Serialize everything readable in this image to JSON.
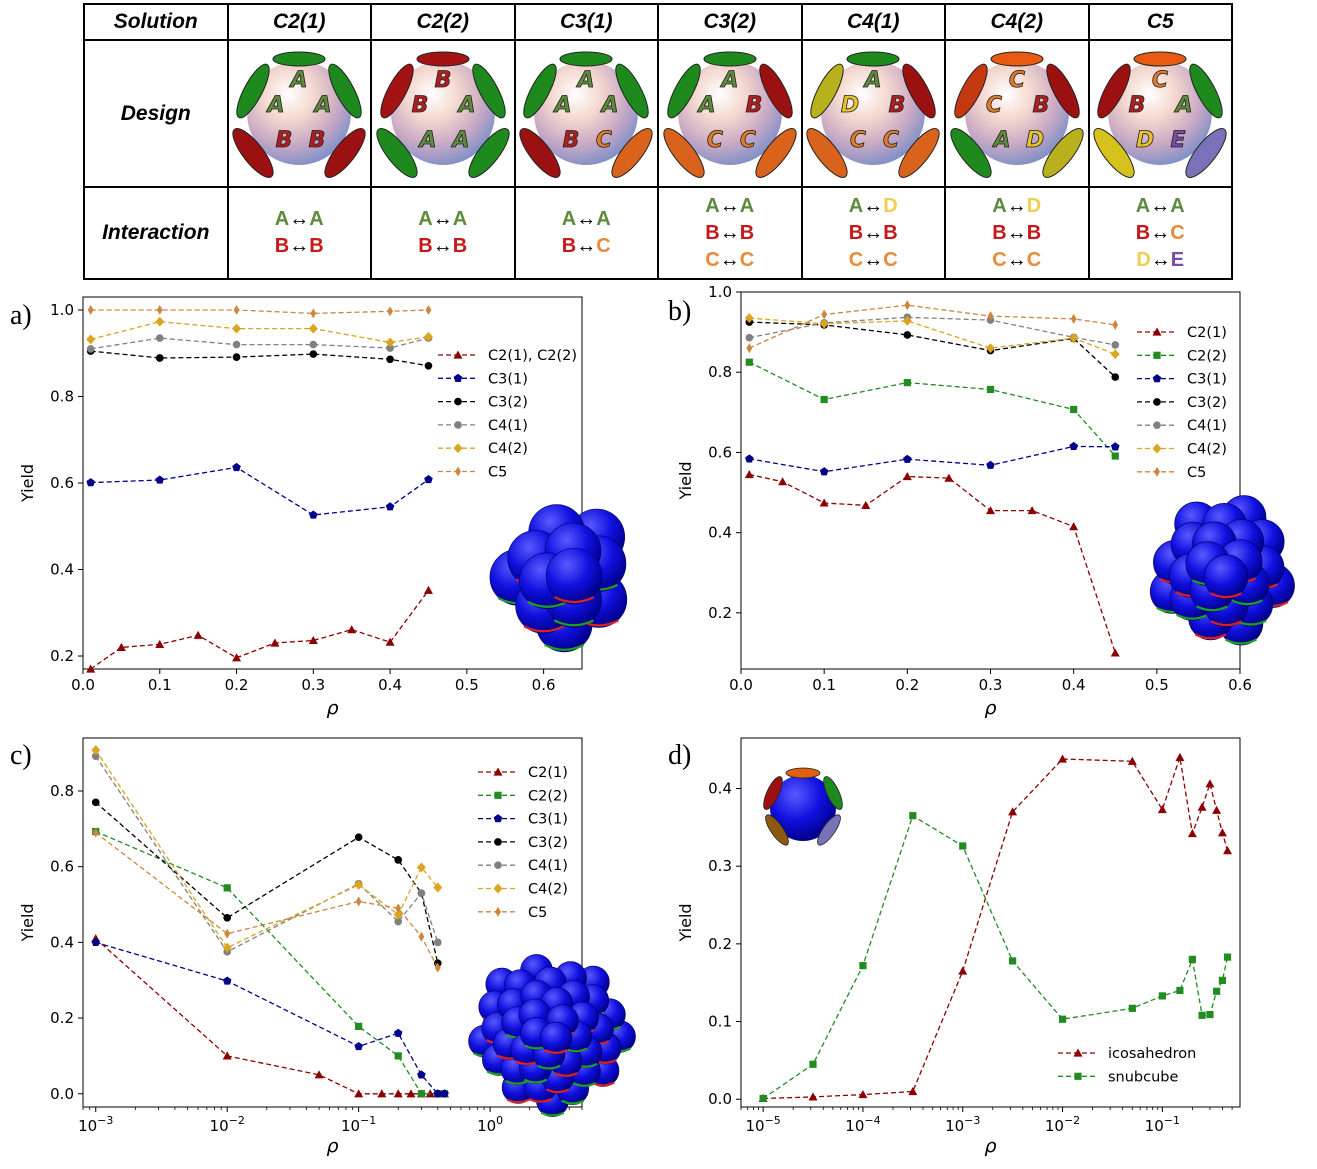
{
  "table": {
    "header_label": "Solution",
    "design_label": "Design",
    "interaction_label": "Interaction",
    "columns": [
      {
        "name": "C2(1)",
        "letters": [
          [
            "A",
            "#5e8a3c"
          ],
          [
            "A",
            "#5e8a3c"
          ],
          [
            "A",
            "#5e8a3c"
          ],
          [
            "B",
            "#b21e1e"
          ],
          [
            "B",
            "#b21e1e"
          ]
        ],
        "patches": [
          "#1e8a1e",
          "#1e8a1e",
          "#1e8a1e",
          "#9b1111",
          "#9b1111"
        ],
        "interactions": [
          [
            [
              "A",
              "#5e8a3c"
            ],
            [
              "A",
              "#5e8a3c"
            ]
          ],
          [
            [
              "B",
              "#c41a1a"
            ],
            [
              "B",
              "#c41a1a"
            ]
          ]
        ]
      },
      {
        "name": "C2(2)",
        "letters": [
          [
            "B",
            "#b21e1e"
          ],
          [
            "B",
            "#b21e1e"
          ],
          [
            "A",
            "#5e8a3c"
          ],
          [
            "A",
            "#5e8a3c"
          ],
          [
            "A",
            "#5e8a3c"
          ]
        ],
        "patches": [
          "#a31313",
          "#a31313",
          "#1e8a1e",
          "#1e8a1e",
          "#1e8a1e"
        ],
        "interactions": [
          [
            [
              "A",
              "#5e8a3c"
            ],
            [
              "A",
              "#5e8a3c"
            ]
          ],
          [
            [
              "B",
              "#c41a1a"
            ],
            [
              "B",
              "#c41a1a"
            ]
          ]
        ]
      },
      {
        "name": "C3(1)",
        "letters": [
          [
            "A",
            "#5e8a3c"
          ],
          [
            "A",
            "#5e8a3c"
          ],
          [
            "A",
            "#5e8a3c"
          ],
          [
            "B",
            "#b21e1e"
          ],
          [
            "C",
            "#e07b2a"
          ]
        ],
        "patches": [
          "#1e8a1e",
          "#1e8a1e",
          "#1e8a1e",
          "#9b1111",
          "#d9631c"
        ],
        "interactions": [
          [
            [
              "A",
              "#5e8a3c"
            ],
            [
              "A",
              "#5e8a3c"
            ]
          ],
          [
            [
              "B",
              "#c41a1a"
            ],
            [
              "C",
              "#e88a3a"
            ]
          ]
        ]
      },
      {
        "name": "C3(2)",
        "letters": [
          [
            "A",
            "#5e8a3c"
          ],
          [
            "A",
            "#5e8a3c"
          ],
          [
            "B",
            "#b21e1e"
          ],
          [
            "C",
            "#e07b2a"
          ],
          [
            "C",
            "#e07b2a"
          ]
        ],
        "patches": [
          "#1e8a1e",
          "#1e8a1e",
          "#9b1111",
          "#d9631c",
          "#d9631c"
        ],
        "interactions": [
          [
            [
              "A",
              "#5e8a3c"
            ],
            [
              "A",
              "#5e8a3c"
            ]
          ],
          [
            [
              "B",
              "#c41a1a"
            ],
            [
              "B",
              "#c41a1a"
            ]
          ],
          [
            [
              "C",
              "#e88a3a"
            ],
            [
              "C",
              "#e88a3a"
            ]
          ]
        ]
      },
      {
        "name": "C4(1)",
        "letters": [
          [
            "A",
            "#5e8a3c"
          ],
          [
            "D",
            "#e8c42a"
          ],
          [
            "B",
            "#b21e1e"
          ],
          [
            "C",
            "#e07b2a"
          ],
          [
            "C",
            "#e07b2a"
          ]
        ],
        "patches": [
          "#1e8a1e",
          "#b8b01c",
          "#9b1111",
          "#d9631c",
          "#d9631c"
        ],
        "interactions": [
          [
            [
              "A",
              "#5e8a3c"
            ],
            [
              "D",
              "#f0cf50"
            ]
          ],
          [
            [
              "B",
              "#c41a1a"
            ],
            [
              "B",
              "#c41a1a"
            ]
          ],
          [
            [
              "C",
              "#e88a3a"
            ],
            [
              "C",
              "#e88a3a"
            ]
          ]
        ]
      },
      {
        "name": "C4(2)",
        "letters": [
          [
            "C",
            "#e07b2a"
          ],
          [
            "C",
            "#e07b2a"
          ],
          [
            "B",
            "#b21e1e"
          ],
          [
            "A",
            "#5e8a3c"
          ],
          [
            "D",
            "#e8c42a"
          ]
        ],
        "patches": [
          "#e85a10",
          "#c4390f",
          "#9b1111",
          "#1e8a1e",
          "#b8b01c"
        ],
        "interactions": [
          [
            [
              "A",
              "#5e8a3c"
            ],
            [
              "D",
              "#f0cf50"
            ]
          ],
          [
            [
              "B",
              "#c41a1a"
            ],
            [
              "B",
              "#c41a1a"
            ]
          ],
          [
            [
              "C",
              "#e88a3a"
            ],
            [
              "C",
              "#e88a3a"
            ]
          ]
        ]
      },
      {
        "name": "C5",
        "letters": [
          [
            "C",
            "#e07b2a"
          ],
          [
            "B",
            "#b21e1e"
          ],
          [
            "A",
            "#5e8a3c"
          ],
          [
            "D",
            "#e8c42a"
          ],
          [
            "E",
            "#7b4aa8"
          ]
        ],
        "patches": [
          "#e85a10",
          "#9b1111",
          "#1e8a1e",
          "#d6c21c",
          "#7a72b8"
        ],
        "interactions": [
          [
            [
              "A",
              "#5e8a3c"
            ],
            [
              "A",
              "#5e8a3c"
            ]
          ],
          [
            [
              "B",
              "#c41a1a"
            ],
            [
              "C",
              "#e88a3a"
            ]
          ],
          [
            [
              "D",
              "#f0cf50"
            ],
            [
              "E",
              "#7b4aa8"
            ]
          ]
        ]
      }
    ]
  },
  "panels": {
    "a": {
      "letter": "a)"
    },
    "b": {
      "letter": "b)"
    },
    "c": {
      "letter": "c)"
    },
    "d": {
      "letter": "d)"
    }
  },
  "chart_data": [
    {
      "id": "a",
      "type": "line",
      "xlabel": "ρ",
      "ylabel": "Yield",
      "xlim": [
        0.0,
        0.65
      ],
      "ylim": [
        0.17,
        1.03
      ],
      "xticks": [
        "0.0",
        "0.1",
        "0.2",
        "0.3",
        "0.4",
        "0.5",
        "0.6"
      ],
      "xtick_values": [
        0,
        0.1,
        0.2,
        0.3,
        0.4,
        0.5,
        0.6
      ],
      "yticks": [
        "0.2",
        "0.4",
        "0.6",
        "0.8",
        "1.0"
      ],
      "ytick_values": [
        0.2,
        0.4,
        0.6,
        0.8,
        1.0
      ],
      "xscale": "linear",
      "legend": "right",
      "series": [
        {
          "name": "C2(1), C2(2)",
          "color": "#8b0000",
          "marker": "triangle",
          "x": [
            0.01,
            0.05,
            0.1,
            0.15,
            0.2,
            0.25,
            0.3,
            0.35,
            0.4,
            0.45
          ],
          "y": [
            0.17,
            0.22,
            0.227,
            0.248,
            0.196,
            0.23,
            0.236,
            0.261,
            0.232,
            0.352
          ]
        },
        {
          "name": "C3(1)",
          "color": "#00008b",
          "marker": "pentagon",
          "x": [
            0.01,
            0.1,
            0.2,
            0.3,
            0.4,
            0.45
          ],
          "y": [
            0.601,
            0.607,
            0.636,
            0.526,
            0.545,
            0.608
          ]
        },
        {
          "name": "C3(2)",
          "color": "#000000",
          "marker": "circle",
          "x": [
            0.01,
            0.1,
            0.2,
            0.3,
            0.4,
            0.45
          ],
          "y": [
            0.905,
            0.889,
            0.891,
            0.898,
            0.886,
            0.871
          ]
        },
        {
          "name": "C4(1)",
          "color": "#808080",
          "marker": "circle",
          "x": [
            0.01,
            0.1,
            0.2,
            0.3,
            0.4,
            0.45
          ],
          "y": [
            0.91,
            0.935,
            0.92,
            0.92,
            0.912,
            0.935
          ]
        },
        {
          "name": "C4(2)",
          "color": "#daa520",
          "marker": "diamond",
          "x": [
            0.01,
            0.1,
            0.2,
            0.3,
            0.4,
            0.45
          ],
          "y": [
            0.932,
            0.973,
            0.957,
            0.957,
            0.925,
            0.938
          ]
        },
        {
          "name": "C5",
          "color": "#cd853f",
          "marker": "thin_diamond",
          "x": [
            0.01,
            0.1,
            0.2,
            0.3,
            0.4,
            0.45
          ],
          "y": [
            1.0,
            1.0,
            1.0,
            0.992,
            0.997,
            1.0
          ]
        }
      ]
    },
    {
      "id": "b",
      "type": "line",
      "xlabel": "ρ",
      "ylabel": "Yield",
      "xlim": [
        0.0,
        0.6
      ],
      "ylim": [
        0.06,
        1.0
      ],
      "xticks": [
        "0.0",
        "0.1",
        "0.2",
        "0.3",
        "0.4",
        "0.5",
        "0.6"
      ],
      "xtick_values": [
        0,
        0.1,
        0.2,
        0.3,
        0.4,
        0.5,
        0.6
      ],
      "yticks": [
        "0.2",
        "0.4",
        "0.6",
        "0.8",
        "1.0"
      ],
      "ytick_values": [
        0.2,
        0.4,
        0.6,
        0.8,
        1.0
      ],
      "xscale": "linear",
      "legend": "right",
      "series": [
        {
          "name": "C2(1)",
          "color": "#8b0000",
          "marker": "triangle",
          "x": [
            0.01,
            0.05,
            0.1,
            0.15,
            0.2,
            0.25,
            0.3,
            0.35,
            0.4,
            0.45
          ],
          "y": [
            0.545,
            0.527,
            0.474,
            0.468,
            0.54,
            0.536,
            0.455,
            0.455,
            0.415,
            0.1
          ]
        },
        {
          "name": "C2(2)",
          "color": "#228b22",
          "marker": "square",
          "x": [
            0.01,
            0.1,
            0.2,
            0.3,
            0.4,
            0.45
          ],
          "y": [
            0.825,
            0.732,
            0.774,
            0.757,
            0.707,
            0.591
          ]
        },
        {
          "name": "C3(1)",
          "color": "#00008b",
          "marker": "pentagon",
          "x": [
            0.01,
            0.1,
            0.2,
            0.3,
            0.4,
            0.45
          ],
          "y": [
            0.584,
            0.552,
            0.583,
            0.568,
            0.615,
            0.614
          ]
        },
        {
          "name": "C3(2)",
          "color": "#000000",
          "marker": "circle",
          "x": [
            0.01,
            0.1,
            0.2,
            0.3,
            0.4,
            0.45
          ],
          "y": [
            0.925,
            0.918,
            0.893,
            0.854,
            0.884,
            0.788
          ]
        },
        {
          "name": "C4(1)",
          "color": "#808080",
          "marker": "circle",
          "x": [
            0.01,
            0.1,
            0.2,
            0.3,
            0.4,
            0.45
          ],
          "y": [
            0.886,
            0.923,
            0.937,
            0.93,
            0.887,
            0.868
          ]
        },
        {
          "name": "C4(2)",
          "color": "#daa520",
          "marker": "diamond",
          "x": [
            0.01,
            0.1,
            0.2,
            0.3,
            0.4,
            0.45
          ],
          "y": [
            0.935,
            0.921,
            0.928,
            0.86,
            0.885,
            0.845
          ]
        },
        {
          "name": "C5",
          "color": "#cd853f",
          "marker": "thin_diamond",
          "x": [
            0.01,
            0.1,
            0.2,
            0.3,
            0.4,
            0.45
          ],
          "y": [
            0.86,
            0.944,
            0.967,
            0.94,
            0.933,
            0.918
          ]
        }
      ]
    },
    {
      "id": "c",
      "type": "line",
      "xlabel": "ρ",
      "ylabel": "Yield",
      "xlim": [
        0.0008,
        5.0
      ],
      "ylim": [
        -0.035,
        0.94
      ],
      "xticks": [
        "10^-3",
        "10^-2",
        "10^-1",
        "10^0"
      ],
      "xtick_values": [
        0.001,
        0.01,
        0.1,
        1
      ],
      "yticks": [
        "0.0",
        "0.2",
        "0.4",
        "0.6",
        "0.8"
      ],
      "ytick_values": [
        0,
        0.2,
        0.4,
        0.6,
        0.8
      ],
      "xscale": "log",
      "legend": "right",
      "series": [
        {
          "name": "C2(1)",
          "color": "#8b0000",
          "marker": "triangle",
          "x": [
            0.001,
            0.01,
            0.05,
            0.1,
            0.15,
            0.2,
            0.25,
            0.3,
            0.35,
            0.4,
            0.45
          ],
          "y": [
            0.41,
            0.1,
            0.05,
            0.0,
            0.0,
            0.0,
            0.0,
            0.0,
            0.0,
            0.0,
            0.0
          ]
        },
        {
          "name": "C2(2)",
          "color": "#228b22",
          "marker": "square",
          "x": [
            0.001,
            0.01,
            0.1,
            0.2,
            0.3,
            0.4,
            0.45
          ],
          "y": [
            0.693,
            0.544,
            0.178,
            0.1,
            0.0,
            0.0,
            0.0
          ]
        },
        {
          "name": "C3(1)",
          "color": "#00008b",
          "marker": "pentagon",
          "x": [
            0.001,
            0.01,
            0.1,
            0.2,
            0.3,
            0.4,
            0.45
          ],
          "y": [
            0.4,
            0.298,
            0.125,
            0.16,
            0.05,
            0.0,
            0.0
          ]
        },
        {
          "name": "C3(2)",
          "color": "#000000",
          "marker": "circle",
          "x": [
            0.001,
            0.01,
            0.1,
            0.2,
            0.3,
            0.4
          ],
          "y": [
            0.77,
            0.465,
            0.678,
            0.618,
            0.53,
            0.345
          ]
        },
        {
          "name": "C4(1)",
          "color": "#808080",
          "marker": "circle",
          "x": [
            0.001,
            0.01,
            0.1,
            0.2,
            0.3,
            0.4
          ],
          "y": [
            0.892,
            0.375,
            0.555,
            0.455,
            0.53,
            0.4
          ]
        },
        {
          "name": "C4(2)",
          "color": "#daa520",
          "marker": "diamond",
          "x": [
            0.001,
            0.01,
            0.1,
            0.2,
            0.3,
            0.4
          ],
          "y": [
            0.908,
            0.386,
            0.552,
            0.473,
            0.598,
            0.545
          ]
        },
        {
          "name": "C5",
          "color": "#cd853f",
          "marker": "thin_diamond",
          "x": [
            0.001,
            0.01,
            0.1,
            0.2,
            0.3,
            0.4
          ],
          "y": [
            0.69,
            0.423,
            0.508,
            0.49,
            0.415,
            0.333
          ]
        }
      ]
    },
    {
      "id": "d",
      "type": "line",
      "xlabel": "ρ",
      "ylabel": "Yield",
      "xlim": [
        6e-06,
        0.6
      ],
      "ylim": [
        -0.01,
        0.465
      ],
      "xticks": [
        "10^-5",
        "10^-4",
        "10^-3",
        "10^-2",
        "10^-1"
      ],
      "xtick_values": [
        1e-05,
        0.0001,
        0.001,
        0.01,
        0.1
      ],
      "yticks": [
        "0.0",
        "0.1",
        "0.2",
        "0.3",
        "0.4"
      ],
      "ytick_values": [
        0,
        0.1,
        0.2,
        0.3,
        0.4
      ],
      "xscale": "log",
      "legend": "lower right",
      "series": [
        {
          "name": "icosahedron",
          "color": "#8b0000",
          "marker": "triangle",
          "x": [
            1e-05,
            3.16e-05,
            0.0001,
            0.000316,
            0.001,
            0.00316,
            0.01,
            0.05,
            0.1,
            0.15,
            0.2,
            0.25,
            0.3,
            0.35,
            0.4,
            0.45
          ],
          "y": [
            0.001,
            0.003,
            0.006,
            0.01,
            0.165,
            0.37,
            0.438,
            0.435,
            0.373,
            0.44,
            0.342,
            0.376,
            0.406,
            0.372,
            0.343,
            0.32
          ]
        },
        {
          "name": "snubcube",
          "color": "#228b22",
          "marker": "square",
          "x": [
            1e-05,
            3.16e-05,
            0.0001,
            0.000316,
            0.001,
            0.00316,
            0.01,
            0.05,
            0.1,
            0.15,
            0.2,
            0.25,
            0.3,
            0.35,
            0.4,
            0.45
          ],
          "y": [
            0.001,
            0.045,
            0.172,
            0.365,
            0.326,
            0.178,
            0.103,
            0.117,
            0.133,
            0.14,
            0.18,
            0.108,
            0.109,
            0.139,
            0.153,
            0.183
          ]
        }
      ]
    }
  ]
}
